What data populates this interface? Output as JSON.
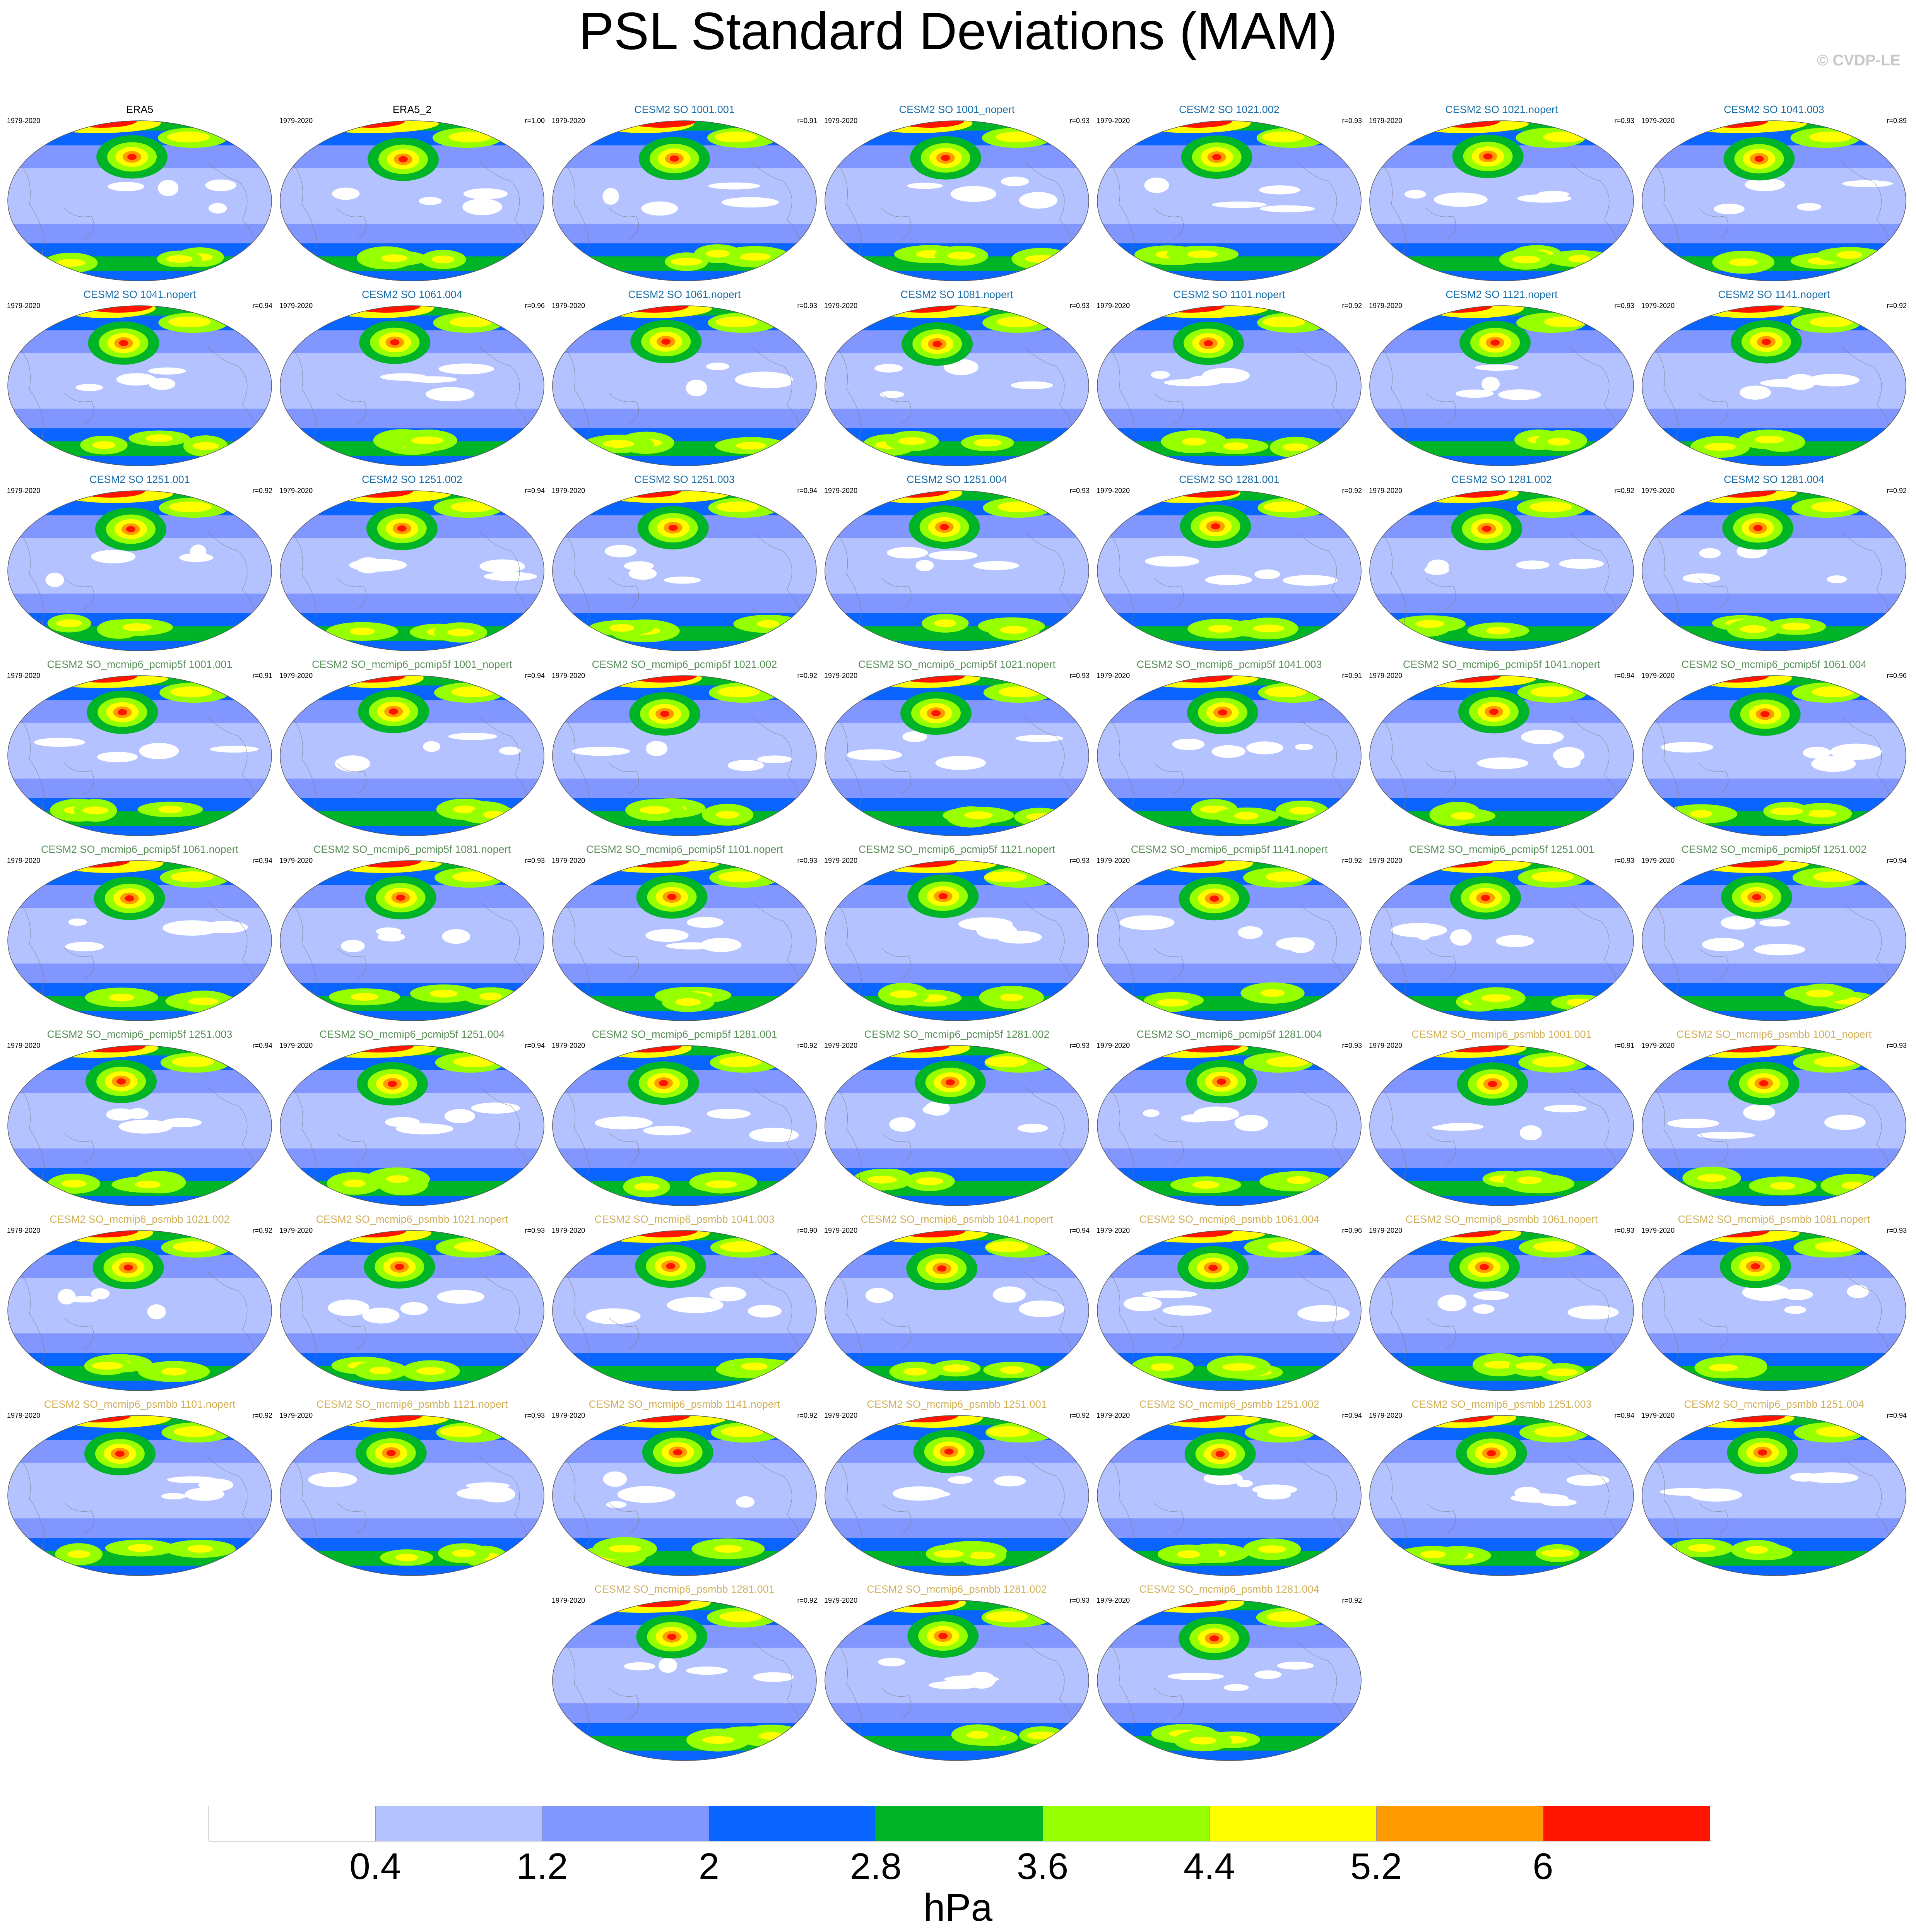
{
  "title": "PSL Standard Deviations (MAM)",
  "copyright": "© CVDP-LE",
  "years": "1979-2020",
  "colors": {
    "obs_title": "#000000",
    "group_so": "#1a6fa8",
    "group_pcmip5f": "#5a8f5a",
    "group_psmbb": "#d0b05a",
    "levels": [
      "#ffffff",
      "#b4c3ff",
      "#8296ff",
      "#0a64ff",
      "#00b428",
      "#96ff00",
      "#ffff00",
      "#ff9b00",
      "#ff1400"
    ]
  },
  "panels": [
    {
      "title": "ERA5",
      "group": "obs",
      "r": ""
    },
    {
      "title": "ERA5_2",
      "group": "obs",
      "r": "r=1.00"
    },
    {
      "title": "CESM2 SO 1001.001",
      "group": "so",
      "r": "r=0.91"
    },
    {
      "title": "CESM2 SO 1001_nopert",
      "group": "so",
      "r": "r=0.93"
    },
    {
      "title": "CESM2 SO 1021.002",
      "group": "so",
      "r": "r=0.93"
    },
    {
      "title": "CESM2 SO 1021.nopert",
      "group": "so",
      "r": "r=0.93"
    },
    {
      "title": "CESM2 SO 1041.003",
      "group": "so",
      "r": "r=0.89"
    },
    {
      "title": "CESM2 SO 1041.nopert",
      "group": "so",
      "r": "r=0.94"
    },
    {
      "title": "CESM2 SO 1061.004",
      "group": "so",
      "r": "r=0.96"
    },
    {
      "title": "CESM2 SO 1061.nopert",
      "group": "so",
      "r": "r=0.93"
    },
    {
      "title": "CESM2 SO 1081.nopert",
      "group": "so",
      "r": "r=0.93"
    },
    {
      "title": "CESM2 SO 1101.nopert",
      "group": "so",
      "r": "r=0.92"
    },
    {
      "title": "CESM2 SO 1121.nopert",
      "group": "so",
      "r": "r=0.93"
    },
    {
      "title": "CESM2 SO 1141.nopert",
      "group": "so",
      "r": "r=0.92"
    },
    {
      "title": "CESM2 SO 1251.001",
      "group": "so",
      "r": "r=0.92"
    },
    {
      "title": "CESM2 SO 1251.002",
      "group": "so",
      "r": "r=0.94"
    },
    {
      "title": "CESM2 SO 1251.003",
      "group": "so",
      "r": "r=0.94"
    },
    {
      "title": "CESM2 SO 1251.004",
      "group": "so",
      "r": "r=0.93"
    },
    {
      "title": "CESM2 SO 1281.001",
      "group": "so",
      "r": "r=0.92"
    },
    {
      "title": "CESM2 SO 1281.002",
      "group": "so",
      "r": "r=0.92"
    },
    {
      "title": "CESM2 SO 1281.004",
      "group": "so",
      "r": "r=0.92"
    },
    {
      "title": "CESM2 SO_mcmip6_pcmip5f 1001.001",
      "group": "pcmip5f",
      "r": "r=0.91"
    },
    {
      "title": "CESM2 SO_mcmip6_pcmip5f 1001_nopert",
      "group": "pcmip5f",
      "r": "r=0.94"
    },
    {
      "title": "CESM2 SO_mcmip6_pcmip5f 1021.002",
      "group": "pcmip5f",
      "r": "r=0.92"
    },
    {
      "title": "CESM2 SO_mcmip6_pcmip5f 1021.nopert",
      "group": "pcmip5f",
      "r": "r=0.93"
    },
    {
      "title": "CESM2 SO_mcmip6_pcmip5f 1041.003",
      "group": "pcmip5f",
      "r": "r=0.91"
    },
    {
      "title": "CESM2 SO_mcmip6_pcmip5f 1041.nopert",
      "group": "pcmip5f",
      "r": "r=0.94"
    },
    {
      "title": "CESM2 SO_mcmip6_pcmip5f 1061.004",
      "group": "pcmip5f",
      "r": "r=0.96"
    },
    {
      "title": "CESM2 SO_mcmip6_pcmip5f 1061.nopert",
      "group": "pcmip5f",
      "r": "r=0.94"
    },
    {
      "title": "CESM2 SO_mcmip6_pcmip5f 1081.nopert",
      "group": "pcmip5f",
      "r": "r=0.93"
    },
    {
      "title": "CESM2 SO_mcmip6_pcmip5f 1101.nopert",
      "group": "pcmip5f",
      "r": "r=0.93"
    },
    {
      "title": "CESM2 SO_mcmip6_pcmip5f 1121.nopert",
      "group": "pcmip5f",
      "r": "r=0.93"
    },
    {
      "title": "CESM2 SO_mcmip6_pcmip5f 1141.nopert",
      "group": "pcmip5f",
      "r": "r=0.92"
    },
    {
      "title": "CESM2 SO_mcmip6_pcmip5f 1251.001",
      "group": "pcmip5f",
      "r": "r=0.93"
    },
    {
      "title": "CESM2 SO_mcmip6_pcmip5f 1251.002",
      "group": "pcmip5f",
      "r": "r=0.94"
    },
    {
      "title": "CESM2 SO_mcmip6_pcmip5f 1251.003",
      "group": "pcmip5f",
      "r": "r=0.94"
    },
    {
      "title": "CESM2 SO_mcmip6_pcmip5f 1251.004",
      "group": "pcmip5f",
      "r": "r=0.94"
    },
    {
      "title": "CESM2 SO_mcmip6_pcmip5f 1281.001",
      "group": "pcmip5f",
      "r": "r=0.92"
    },
    {
      "title": "CESM2 SO_mcmip6_pcmip5f 1281.002",
      "group": "pcmip5f",
      "r": "r=0.93"
    },
    {
      "title": "CESM2 SO_mcmip6_pcmip5f 1281.004",
      "group": "pcmip5f",
      "r": "r=0.93"
    },
    {
      "title": "CESM2 SO_mcmip6_psmbb 1001.001",
      "group": "psmbb",
      "r": "r=0.91"
    },
    {
      "title": "CESM2 SO_mcmip6_psmbb 1001_nopert",
      "group": "psmbb",
      "r": "r=0.93"
    },
    {
      "title": "CESM2 SO_mcmip6_psmbb 1021.002",
      "group": "psmbb",
      "r": "r=0.92"
    },
    {
      "title": "CESM2 SO_mcmip6_psmbb 1021.nopert",
      "group": "psmbb",
      "r": "r=0.93"
    },
    {
      "title": "CESM2 SO_mcmip6_psmbb 1041.003",
      "group": "psmbb",
      "r": "r=0.90"
    },
    {
      "title": "CESM2 SO_mcmip6_psmbb 1041.nopert",
      "group": "psmbb",
      "r": "r=0.94"
    },
    {
      "title": "CESM2 SO_mcmip6_psmbb 1061.004",
      "group": "psmbb",
      "r": "r=0.96"
    },
    {
      "title": "CESM2 SO_mcmip6_psmbb 1061.nopert",
      "group": "psmbb",
      "r": "r=0.93"
    },
    {
      "title": "CESM2 SO_mcmip6_psmbb 1081.nopert",
      "group": "psmbb",
      "r": "r=0.93"
    },
    {
      "title": "CESM2 SO_mcmip6_psmbb 1101.nopert",
      "group": "psmbb",
      "r": "r=0.92"
    },
    {
      "title": "CESM2 SO_mcmip6_psmbb 1121.nopert",
      "group": "psmbb",
      "r": "r=0.93"
    },
    {
      "title": "CESM2 SO_mcmip6_psmbb 1141.nopert",
      "group": "psmbb",
      "r": "r=0.92"
    },
    {
      "title": "CESM2 SO_mcmip6_psmbb 1251.001",
      "group": "psmbb",
      "r": "r=0.92"
    },
    {
      "title": "CESM2 SO_mcmip6_psmbb 1251.002",
      "group": "psmbb",
      "r": "r=0.94"
    },
    {
      "title": "CESM2 SO_mcmip6_psmbb 1251.003",
      "group": "psmbb",
      "r": "r=0.94"
    },
    {
      "title": "CESM2 SO_mcmip6_psmbb 1251.004",
      "group": "psmbb",
      "r": "r=0.94"
    },
    {
      "title": "CESM2 SO_mcmip6_psmbb 1281.001",
      "group": "psmbb",
      "r": "r=0.92"
    },
    {
      "title": "CESM2 SO_mcmip6_psmbb 1281.002",
      "group": "psmbb",
      "r": "r=0.93"
    },
    {
      "title": "CESM2 SO_mcmip6_psmbb 1281.004",
      "group": "psmbb",
      "r": "r=0.92"
    }
  ],
  "colorbar": {
    "ticks": [
      "0.4",
      "1.2",
      "2",
      "2.8",
      "3.6",
      "4.4",
      "5.2",
      "6"
    ],
    "units": "hPa"
  }
}
